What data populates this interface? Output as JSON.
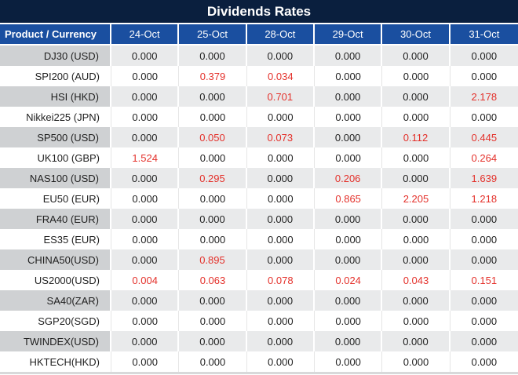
{
  "title": "Dividends Rates",
  "table": {
    "product_header": "Product / Currency",
    "date_headers": [
      "24-Oct",
      "25-Oct",
      "28-Oct",
      "29-Oct",
      "30-Oct",
      "31-Oct"
    ],
    "rows": [
      {
        "product": "DJ30 (USD)",
        "values": [
          "0.000",
          "0.000",
          "0.000",
          "0.000",
          "0.000",
          "0.000"
        ],
        "red": [
          false,
          false,
          false,
          false,
          false,
          false
        ]
      },
      {
        "product": "SPI200 (AUD)",
        "values": [
          "0.000",
          "0.379",
          "0.034",
          "0.000",
          "0.000",
          "0.000"
        ],
        "red": [
          false,
          true,
          true,
          false,
          false,
          false
        ]
      },
      {
        "product": "HSI (HKD)",
        "values": [
          "0.000",
          "0.000",
          "0.701",
          "0.000",
          "0.000",
          "2.178"
        ],
        "red": [
          false,
          false,
          true,
          false,
          false,
          true
        ]
      },
      {
        "product": "Nikkei225 (JPN)",
        "values": [
          "0.000",
          "0.000",
          "0.000",
          "0.000",
          "0.000",
          "0.000"
        ],
        "red": [
          false,
          false,
          false,
          false,
          false,
          false
        ]
      },
      {
        "product": "SP500 (USD)",
        "values": [
          "0.000",
          "0.050",
          "0.073",
          "0.000",
          "0.112",
          "0.445"
        ],
        "red": [
          false,
          true,
          true,
          false,
          true,
          true
        ]
      },
      {
        "product": "UK100 (GBP)",
        "values": [
          "1.524",
          "0.000",
          "0.000",
          "0.000",
          "0.000",
          "0.264"
        ],
        "red": [
          true,
          false,
          false,
          false,
          false,
          true
        ]
      },
      {
        "product": "NAS100 (USD)",
        "values": [
          "0.000",
          "0.295",
          "0.000",
          "0.206",
          "0.000",
          "1.639"
        ],
        "red": [
          false,
          true,
          false,
          true,
          false,
          true
        ]
      },
      {
        "product": "EU50 (EUR)",
        "values": [
          "0.000",
          "0.000",
          "0.000",
          "0.865",
          "2.205",
          "1.218"
        ],
        "red": [
          false,
          false,
          false,
          true,
          true,
          true
        ]
      },
      {
        "product": "FRA40 (EUR)",
        "values": [
          "0.000",
          "0.000",
          "0.000",
          "0.000",
          "0.000",
          "0.000"
        ],
        "red": [
          false,
          false,
          false,
          false,
          false,
          false
        ]
      },
      {
        "product": "ES35 (EUR)",
        "values": [
          "0.000",
          "0.000",
          "0.000",
          "0.000",
          "0.000",
          "0.000"
        ],
        "red": [
          false,
          false,
          false,
          false,
          false,
          false
        ]
      },
      {
        "product": "CHINA50(USD)",
        "values": [
          "0.000",
          "0.895",
          "0.000",
          "0.000",
          "0.000",
          "0.000"
        ],
        "red": [
          false,
          true,
          false,
          false,
          false,
          false
        ]
      },
      {
        "product": "US2000(USD)",
        "values": [
          "0.004",
          "0.063",
          "0.078",
          "0.024",
          "0.043",
          "0.151"
        ],
        "red": [
          true,
          true,
          true,
          true,
          true,
          true
        ]
      },
      {
        "product": "SA40(ZAR)",
        "values": [
          "0.000",
          "0.000",
          "0.000",
          "0.000",
          "0.000",
          "0.000"
        ],
        "red": [
          false,
          false,
          false,
          false,
          false,
          false
        ]
      },
      {
        "product": "SGP20(SGD)",
        "values": [
          "0.000",
          "0.000",
          "0.000",
          "0.000",
          "0.000",
          "0.000"
        ],
        "red": [
          false,
          false,
          false,
          false,
          false,
          false
        ]
      },
      {
        "product": "TWINDEX(USD)",
        "values": [
          "0.000",
          "0.000",
          "0.000",
          "0.000",
          "0.000",
          "0.000"
        ],
        "red": [
          false,
          false,
          false,
          false,
          false,
          false
        ]
      },
      {
        "product": "HKTECH(HKD)",
        "values": [
          "0.000",
          "0.000",
          "0.000",
          "0.000",
          "0.000",
          "0.000"
        ],
        "red": [
          false,
          false,
          false,
          false,
          false,
          false
        ]
      }
    ]
  },
  "colors": {
    "title_bg": "#0A1F3E",
    "header_bg": "#1A4FA0",
    "row_gray_product": "#CFD1D3",
    "row_gray_value": "#E9EAEB",
    "value_red": "#E4312B",
    "text_dark": "#1F1F1F"
  }
}
